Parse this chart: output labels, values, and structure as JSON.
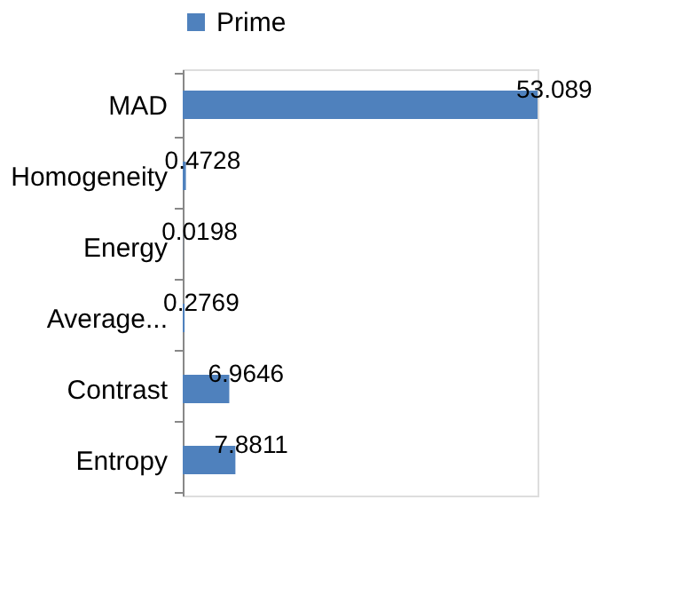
{
  "chart_data": {
    "type": "bar",
    "orientation": "horizontal",
    "categories": [
      "MAD",
      "Homogeneity",
      "Energy",
      "Average...",
      "Contrast",
      "Entropy"
    ],
    "series": [
      {
        "name": "Prime",
        "color": "#4f81bd",
        "values": [
          53.089,
          0.4728,
          0.0198,
          0.2769,
          6.9646,
          7.8811
        ]
      }
    ],
    "data_labels": true,
    "legend": "top",
    "grid": false
  }
}
